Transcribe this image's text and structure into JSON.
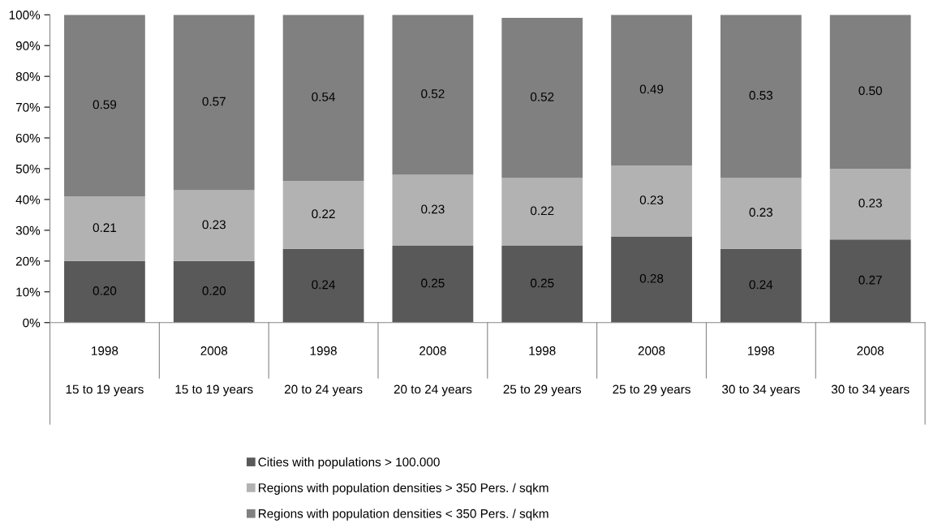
{
  "chart_data": {
    "type": "bar",
    "stacked": true,
    "categories": [
      "1998\n15 to 19 years",
      "2008\n15 to 19 years",
      "1998\n20 to 24 years",
      "2008\n20 to 24 years",
      "1998\n25 to 29 years",
      "2008\n25 to 29 years",
      "1998\n30 to 34 years",
      "2008\n30 to 34 years"
    ],
    "series": [
      {
        "name": "Cities with populations > 100.000",
        "color": "#595959",
        "values": [
          0.2,
          0.2,
          0.24,
          0.25,
          0.25,
          0.28,
          0.24,
          0.27
        ],
        "value_labels": [
          "0.20",
          "0.20",
          "0.24",
          "0.25",
          "0.25",
          "0.28",
          "0.24",
          "0.27"
        ]
      },
      {
        "name": "Regions with population densities > 350 Pers. / sqkm",
        "color": "#b2b2b2",
        "values": [
          0.21,
          0.23,
          0.22,
          0.23,
          0.22,
          0.23,
          0.23,
          0.23
        ],
        "value_labels": [
          "0.21",
          "0.23",
          "0.22",
          "0.23",
          "0.22",
          "0.23",
          "0.23",
          "0.23"
        ]
      },
      {
        "name": "Regions with population densities < 350 Pers. / sqkm",
        "color": "#808080",
        "values": [
          0.59,
          0.57,
          0.54,
          0.52,
          0.52,
          0.49,
          0.53,
          0.5
        ],
        "value_labels": [
          "0.59",
          "0.57",
          "0.54",
          "0.52",
          "0.52",
          "0.49",
          "0.53",
          "0.50"
        ]
      }
    ],
    "ylim": [
      0,
      1
    ],
    "yticks": [
      {
        "value": 0,
        "label": "0%"
      },
      {
        "value": 0.1,
        "label": "10%"
      },
      {
        "value": 0.2,
        "label": "20%"
      },
      {
        "value": 0.3,
        "label": "30%"
      },
      {
        "value": 0.4,
        "label": "40%"
      },
      {
        "value": 0.5,
        "label": "50%"
      },
      {
        "value": 0.6,
        "label": "60%"
      },
      {
        "value": 0.7,
        "label": "70%"
      },
      {
        "value": 0.8,
        "label": "80%"
      },
      {
        "value": 0.9,
        "label": "90%"
      },
      {
        "value": 1,
        "label": "100%"
      }
    ],
    "grid": false,
    "legend": "bottom"
  }
}
